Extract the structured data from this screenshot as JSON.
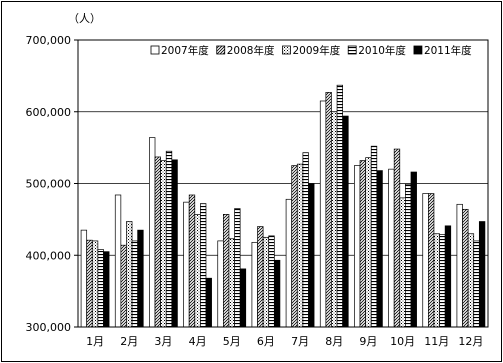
{
  "chart_data": {
    "type": "bar",
    "title": "",
    "unit_label": "（人）",
    "xlabel": "",
    "ylabel": "",
    "ylim": [
      300000,
      700000
    ],
    "yticks": [
      300000,
      400000,
      500000,
      600000,
      700000
    ],
    "ytick_labels": [
      "300,000",
      "400,000",
      "500,000",
      "600,000",
      "700,000"
    ],
    "grid": true,
    "legend_position": "top-right",
    "categories": [
      "1月",
      "2月",
      "3月",
      "4月",
      "5月",
      "6月",
      "7月",
      "8月",
      "9月",
      "10月",
      "11月",
      "12月"
    ],
    "series": [
      {
        "name": "2007年度",
        "pattern": "white",
        "values": [
          435000,
          484000,
          564000,
          474000,
          420000,
          418000,
          478000,
          615000,
          525000,
          520000,
          486000,
          471000
        ]
      },
      {
        "name": "2008年度",
        "pattern": "diagonal",
        "values": [
          421000,
          414000,
          537000,
          484000,
          457000,
          440000,
          525000,
          627000,
          532000,
          548000,
          486000,
          464000
        ]
      },
      {
        "name": "2009年度",
        "pattern": "dotted",
        "values": [
          420000,
          447000,
          532000,
          457000,
          423000,
          425000,
          527000,
          600000,
          536000,
          480000,
          430000,
          430000
        ]
      },
      {
        "name": "2010年度",
        "pattern": "horizontal",
        "values": [
          408000,
          420000,
          545000,
          472000,
          465000,
          427000,
          543000,
          637000,
          552000,
          499000,
          429000,
          420000
        ]
      },
      {
        "name": "2011年度",
        "pattern": "black",
        "values": [
          405000,
          435000,
          533000,
          368000,
          381000,
          393000,
          500000,
          594000,
          518000,
          516000,
          441000,
          447000
        ]
      }
    ]
  }
}
